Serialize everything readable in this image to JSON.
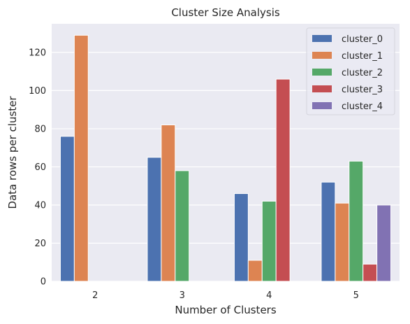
{
  "chart_data": {
    "type": "bar",
    "title": "Cluster Size Analysis",
    "xlabel": "Number of Clusters",
    "ylabel": "Data rows per cluster",
    "categories": [
      "2",
      "3",
      "4",
      "5"
    ],
    "yticks": [
      0,
      20,
      40,
      60,
      80,
      100,
      120
    ],
    "ylim": [
      0,
      135
    ],
    "grid": true,
    "legend_position": "top-right",
    "series": [
      {
        "name": "cluster_0",
        "color": "#4c72b0",
        "values": [
          76,
          65,
          46,
          52
        ]
      },
      {
        "name": "cluster_1",
        "color": "#dd8452",
        "values": [
          129,
          82,
          11,
          41
        ]
      },
      {
        "name": "cluster_2",
        "color": "#55a868",
        "values": [
          0,
          58,
          42,
          63
        ]
      },
      {
        "name": "cluster_3",
        "color": "#c44e52",
        "values": [
          0,
          0,
          106,
          9
        ]
      },
      {
        "name": "cluster_4",
        "color": "#8172b3",
        "values": [
          0,
          0,
          0,
          40
        ]
      }
    ]
  }
}
